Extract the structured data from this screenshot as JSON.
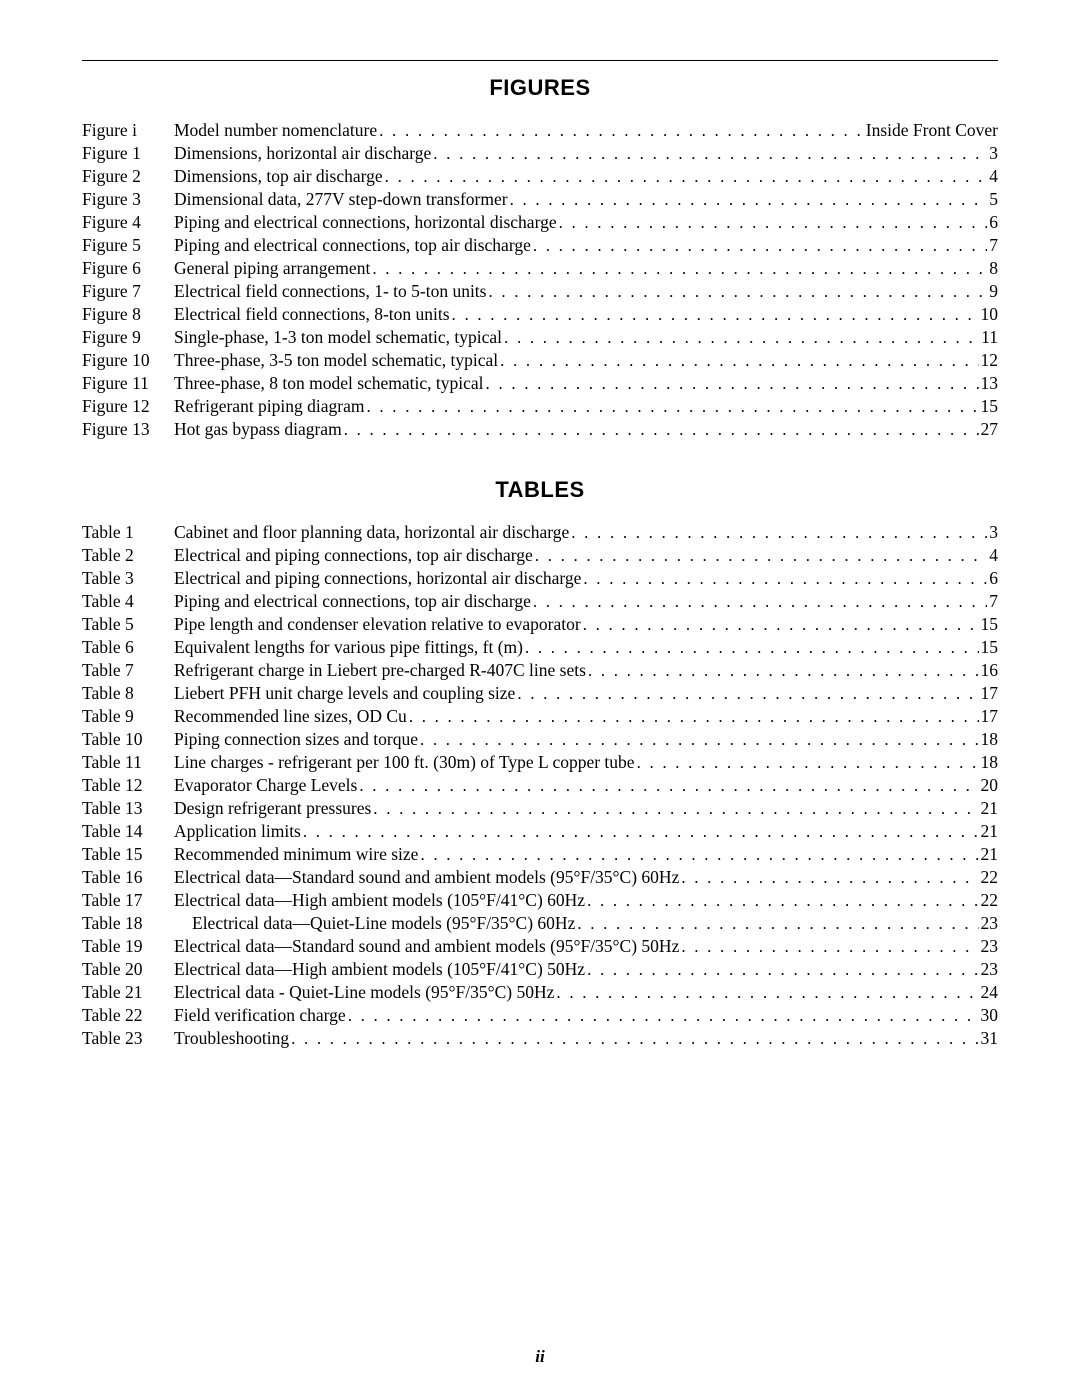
{
  "figures_heading": "FIGURES",
  "tables_heading": "TABLES",
  "page_number": "ii",
  "figures": [
    {
      "label": "Figure i",
      "title": "Model number nomenclature",
      "page": "Inside Front Cover"
    },
    {
      "label": "Figure 1",
      "title": "Dimensions, horizontal air discharge",
      "page": "3"
    },
    {
      "label": "Figure 2",
      "title": "Dimensions, top air discharge",
      "page": "4"
    },
    {
      "label": "Figure 3",
      "title": "Dimensional data, 277V step-down transformer",
      "page": "5"
    },
    {
      "label": "Figure 4",
      "title": "Piping and electrical connections, horizontal discharge",
      "page": "6"
    },
    {
      "label": "Figure 5",
      "title": "Piping and electrical connections, top air discharge",
      "page": "7"
    },
    {
      "label": "Figure 6",
      "title": "General piping arrangement",
      "page": "8"
    },
    {
      "label": "Figure 7",
      "title": "Electrical field connections, 1- to 5-ton units",
      "page": "9"
    },
    {
      "label": "Figure 8",
      "title": "Electrical field connections, 8-ton units",
      "page": "10"
    },
    {
      "label": "Figure 9",
      "title": "Single-phase, 1-3 ton model schematic, typical",
      "page": "11"
    },
    {
      "label": "Figure 10",
      "title": "Three-phase, 3-5 ton model schematic, typical",
      "page": "12"
    },
    {
      "label": "Figure 11",
      "title": "Three-phase, 8 ton model schematic, typical",
      "page": "13"
    },
    {
      "label": "Figure 12",
      "title": "Refrigerant piping diagram",
      "page": "15"
    },
    {
      "label": "Figure 13",
      "title": "Hot gas bypass diagram",
      "page": "27"
    }
  ],
  "tables": [
    {
      "label": "Table 1",
      "title": "Cabinet and floor planning data, horizontal air discharge",
      "page": "3"
    },
    {
      "label": "Table 2",
      "title": "Electrical and piping connections, top air discharge",
      "page": "4"
    },
    {
      "label": "Table 3",
      "title": "Electrical and piping connections, horizontal air discharge",
      "page": "6"
    },
    {
      "label": "Table 4",
      "title": "Piping and electrical connections, top air discharge",
      "page": "7"
    },
    {
      "label": "Table 5",
      "title": "Pipe length and condenser elevation relative to evaporator",
      "page": "15"
    },
    {
      "label": "Table 6",
      "title": "Equivalent lengths for various pipe fittings, ft (m)",
      "page": "15"
    },
    {
      "label": "Table 7",
      "title": "Refrigerant charge in Liebert pre-charged R-407C line sets",
      "page": "16"
    },
    {
      "label": "Table 8",
      "title": "Liebert PFH unit charge levels and coupling size",
      "page": "17"
    },
    {
      "label": "Table 9",
      "title": "Recommended line sizes, OD Cu",
      "page": "17"
    },
    {
      "label": "Table 10",
      "title": "Piping connection sizes and torque",
      "page": "18"
    },
    {
      "label": "Table 11",
      "title": "Line charges - refrigerant per 100 ft. (30m) of Type L copper tube",
      "page": "18"
    },
    {
      "label": "Table 12",
      "title": "Evaporator Charge Levels",
      "page": "20"
    },
    {
      "label": "Table 13",
      "title": "Design refrigerant pressures",
      "page": "21"
    },
    {
      "label": "Table 14",
      "title": "Application limits",
      "page": "21"
    },
    {
      "label": "Table 15",
      "title": "Recommended minimum wire size",
      "page": "21"
    },
    {
      "label": "Table 16",
      "title": "Electrical data—Standard sound and ambient models (95°F/35°C) 60Hz",
      "page": "22"
    },
    {
      "label": "Table 17",
      "title": "Electrical data—High ambient models (105°F/41°C) 60Hz",
      "page": "22"
    },
    {
      "label": "Table 18",
      "title": "Electrical data—Quiet-Line models (95°F/35°C) 60Hz",
      "page": "23",
      "indent": true
    },
    {
      "label": "Table 19",
      "title": "Electrical data—Standard sound and ambient models (95°F/35°C) 50Hz",
      "page": "23"
    },
    {
      "label": "Table 20",
      "title": "Electrical data—High ambient models (105°F/41°C) 50Hz",
      "page": "23"
    },
    {
      "label": "Table 21",
      "title": "Electrical data - Quiet-Line models (95°F/35°C) 50Hz",
      "page": "24"
    },
    {
      "label": "Table 22",
      "title": "Field verification charge",
      "page": "30"
    },
    {
      "label": "Table 23",
      "title": "Troubleshooting",
      "page": "31"
    }
  ]
}
